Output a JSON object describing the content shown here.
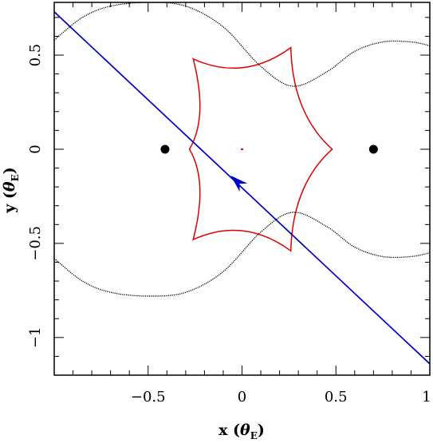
{
  "chart_data": {
    "type": "line",
    "xlabel": "x (θE)",
    "ylabel": "y (θE)",
    "xlim": [
      -1.0,
      1.0
    ],
    "ylim": [
      -1.2,
      0.78
    ],
    "x_ticks": [
      {
        "value": -0.5,
        "label": "−0.5"
      },
      {
        "value": 0,
        "label": "0"
      },
      {
        "value": 0.5,
        "label": "0.5"
      },
      {
        "value": 1,
        "label": "1"
      }
    ],
    "y_ticks": [
      {
        "value": 0.5,
        "label": "0.5"
      },
      {
        "value": 0,
        "label": "0"
      },
      {
        "value": -0.5,
        "label": "−0.5"
      },
      {
        "value": -1,
        "label": "−1"
      }
    ],
    "grid": false,
    "colors": {
      "caustic": "#dd0000",
      "critical_curve": "#000000",
      "trajectory": "#0000cc",
      "lens": "#000000"
    },
    "lenses": [
      {
        "x": -0.41,
        "y": 0.0
      },
      {
        "x": 0.7,
        "y": 0.0
      }
    ],
    "caustic": {
      "vertices": [
        {
          "x": 0.48,
          "y": 0.0
        },
        {
          "x": 0.26,
          "y": 0.54
        },
        {
          "x": -0.26,
          "y": 0.48
        },
        {
          "x": -0.28,
          "y": 0.0
        },
        {
          "x": -0.26,
          "y": -0.48
        },
        {
          "x": 0.26,
          "y": -0.54
        }
      ],
      "small_caustic": {
        "x": 0.0,
        "y": 0.0
      }
    },
    "critical_curve": {
      "upper_points": [
        {
          "x": -1.0,
          "y": 0.58
        },
        {
          "x": -0.85,
          "y": 0.7
        },
        {
          "x": -0.7,
          "y": 0.76
        },
        {
          "x": -0.5,
          "y": 0.78
        },
        {
          "x": -0.3,
          "y": 0.76
        },
        {
          "x": -0.1,
          "y": 0.65
        },
        {
          "x": 0.1,
          "y": 0.44
        },
        {
          "x": 0.27,
          "y": 0.335
        },
        {
          "x": 0.45,
          "y": 0.41
        },
        {
          "x": 0.6,
          "y": 0.52
        },
        {
          "x": 0.75,
          "y": 0.57
        },
        {
          "x": 0.9,
          "y": 0.57
        },
        {
          "x": 1.0,
          "y": 0.55
        }
      ],
      "lower_points": [
        {
          "x": -1.0,
          "y": -0.58
        },
        {
          "x": -0.85,
          "y": -0.7
        },
        {
          "x": -0.7,
          "y": -0.76
        },
        {
          "x": -0.5,
          "y": -0.78
        },
        {
          "x": -0.3,
          "y": -0.76
        },
        {
          "x": -0.1,
          "y": -0.65
        },
        {
          "x": 0.1,
          "y": -0.44
        },
        {
          "x": 0.27,
          "y": -0.335
        },
        {
          "x": 0.45,
          "y": -0.41
        },
        {
          "x": 0.6,
          "y": -0.52
        },
        {
          "x": 0.75,
          "y": -0.57
        },
        {
          "x": 0.9,
          "y": -0.57
        },
        {
          "x": 1.0,
          "y": -0.55
        }
      ]
    },
    "trajectory": {
      "start": {
        "x": -1.0,
        "y": 0.73
      },
      "end": {
        "x": 1.0,
        "y": -1.14
      },
      "arrow": {
        "x": -0.06,
        "y": -0.14
      }
    }
  }
}
